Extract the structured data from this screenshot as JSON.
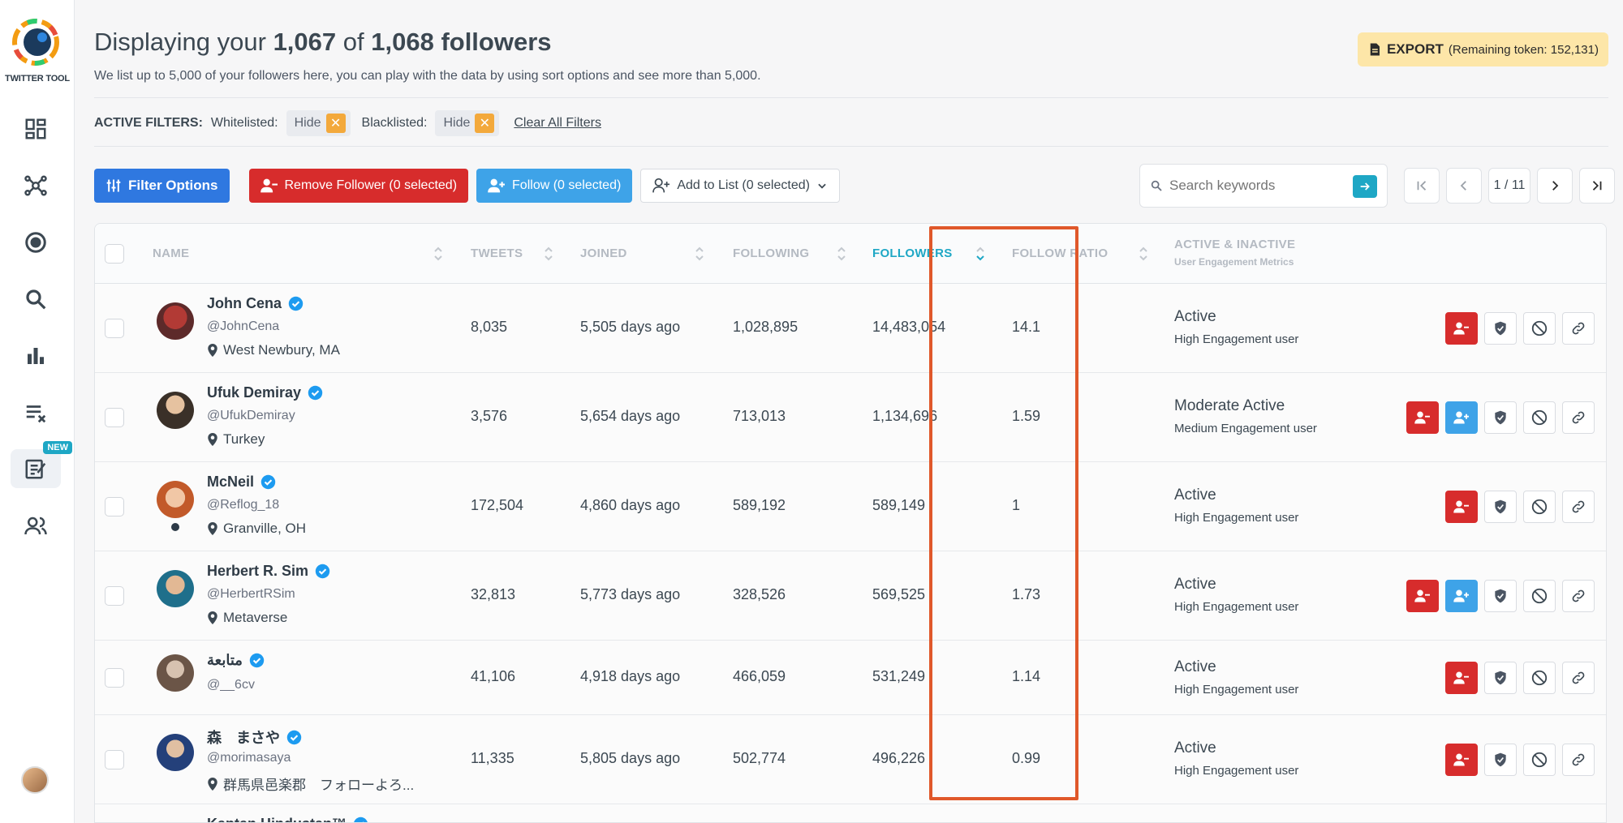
{
  "app": {
    "name": "TWITTER TOOL"
  },
  "sidebar": {
    "items": [
      {
        "name": "dashboard-icon"
      },
      {
        "name": "network-icon"
      },
      {
        "name": "target-icon"
      },
      {
        "name": "search-icon"
      },
      {
        "name": "bar-chart-icon"
      },
      {
        "name": "list-remove-icon"
      },
      {
        "name": "compose-icon",
        "badge": "NEW"
      },
      {
        "name": "users-icon"
      }
    ]
  },
  "header": {
    "title_prefix": "Displaying your",
    "shown_count": "1,067",
    "of_word": "of",
    "total_label": "1,068 followers",
    "subtitle": "We list up to 5,000 of your followers here, you can play with the data by using sort options and see more than 5,000.",
    "export_label": "EXPORT",
    "export_token": "(Remaining token: 152,131)"
  },
  "filters": {
    "title": "ACTIVE FILTERS:",
    "whitelisted_label": "Whitelisted:",
    "whitelisted_value": "Hide",
    "blacklisted_label": "Blacklisted:",
    "blacklisted_value": "Hide",
    "clear_label": "Clear All Filters",
    "x_glyph": "✕"
  },
  "toolbar": {
    "filter_options": "Filter Options",
    "remove_follower": "Remove Follower (0 selected)",
    "follow": "Follow (0 selected)",
    "add_to_list": "Add to List (0 selected)"
  },
  "search": {
    "placeholder": "Search keywords"
  },
  "pager": {
    "page": "1 / 11"
  },
  "table": {
    "columns": {
      "name": "NAME",
      "tweets": "TWEETS",
      "joined": "JOINED",
      "following": "FOLLOWING",
      "followers": "FOLLOWERS",
      "ratio": "FOLLOW RATIO",
      "activity": "ACTIVE & INACTIVE",
      "activity_sub": "User Engagement Metrics"
    },
    "rows": [
      {
        "name": "John Cena",
        "handle": "@JohnCena",
        "location": "West Newbury, MA",
        "tweets": "8,035",
        "joined": "5,505 days ago",
        "following": "1,028,895",
        "followers": "14,483,054",
        "ratio": "14.1",
        "status": "Active",
        "engagement": "High Engagement user"
      },
      {
        "name": "Ufuk Demiray",
        "handle": "@UfukDemiray",
        "location": "Turkey",
        "tweets": "3,576",
        "joined": "5,654 days ago",
        "following": "713,013",
        "followers": "1,134,696",
        "ratio": "1.59",
        "status": "Moderate Active",
        "engagement": "Medium Engagement user"
      },
      {
        "name": "McNeil",
        "handle": "@Reflog_18",
        "location": "Granville, OH",
        "tweets": "172,504",
        "joined": "4,860 days ago",
        "following": "589,192",
        "followers": "589,149",
        "ratio": "1",
        "status": "Active",
        "engagement": "High Engagement user"
      },
      {
        "name": "Herbert R. Sim",
        "handle": "@HerbertRSim",
        "location": "Metaverse",
        "tweets": "32,813",
        "joined": "5,773 days ago",
        "following": "328,526",
        "followers": "569,525",
        "ratio": "1.73",
        "status": "Active",
        "engagement": "High Engagement user"
      },
      {
        "name": "متابعة",
        "handle": "@__6cv",
        "location": "",
        "tweets": "41,106",
        "joined": "4,918 days ago",
        "following": "466,059",
        "followers": "531,249",
        "ratio": "1.14",
        "status": "Active",
        "engagement": "High Engagement user"
      },
      {
        "name": "森　まさや",
        "handle": "@morimasaya",
        "location": "群馬県邑楽郡　フォローよろ...",
        "tweets": "11,335",
        "joined": "5,805 days ago",
        "following": "502,774",
        "followers": "496,226",
        "ratio": "0.99",
        "status": "Active",
        "engagement": "High Engagement user"
      }
    ],
    "partial_row_name": "Kaptan Hindustan™"
  }
}
